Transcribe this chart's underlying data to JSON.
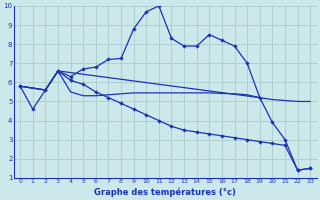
{
  "bg_color": "#cce8ea",
  "grid_color": "#aacccc",
  "line_color": "#1a32b8",
  "xlabel": "Graphe des températures (°c)",
  "xlim": [
    -0.5,
    23.5
  ],
  "ylim": [
    1,
    10
  ],
  "xticks": [
    0,
    1,
    2,
    3,
    4,
    5,
    6,
    7,
    8,
    9,
    10,
    11,
    12,
    13,
    14,
    15,
    16,
    17,
    18,
    19,
    20,
    21,
    22,
    23
  ],
  "yticks": [
    1,
    2,
    3,
    4,
    5,
    6,
    7,
    8,
    9,
    10
  ],
  "line1_x": [
    0,
    1,
    2,
    3,
    4,
    5,
    6,
    7,
    8,
    9,
    10,
    11,
    12,
    13,
    14,
    15,
    16,
    17,
    18,
    19,
    20,
    21,
    22,
    23
  ],
  "line1_y": [
    5.8,
    4.6,
    5.6,
    6.6,
    6.3,
    6.7,
    6.8,
    7.2,
    7.25,
    8.8,
    9.7,
    10.0,
    8.3,
    7.9,
    7.9,
    8.5,
    8.2,
    7.9,
    7.0,
    5.2,
    3.9,
    3.0,
    1.4,
    1.5
  ],
  "line2_x": [
    0,
    2,
    3,
    19,
    20,
    21,
    22,
    23
  ],
  "line2_y": [
    5.8,
    5.6,
    6.6,
    5.2,
    5.1,
    5.05,
    5.0,
    5.0
  ],
  "line3_x": [
    0,
    2,
    3,
    4,
    5,
    6,
    7,
    8,
    9,
    10,
    11,
    12,
    13,
    14,
    15,
    16,
    17,
    18,
    19,
    20,
    21,
    22,
    23
  ],
  "line3_y": [
    5.8,
    5.6,
    6.6,
    6.1,
    5.9,
    5.5,
    5.2,
    4.9,
    4.6,
    4.3,
    4.0,
    3.7,
    3.5,
    3.4,
    3.3,
    3.2,
    3.1,
    3.0,
    2.9,
    2.8,
    2.7,
    1.4,
    1.5
  ],
  "line4_x": [
    0,
    2,
    3,
    4,
    5,
    6,
    7,
    8,
    9,
    10,
    11,
    12,
    13,
    14,
    15,
    16,
    17,
    18,
    19
  ],
  "line4_y": [
    5.8,
    5.6,
    6.6,
    5.5,
    5.3,
    5.3,
    5.35,
    5.4,
    5.45,
    5.45,
    5.45,
    5.45,
    5.45,
    5.45,
    5.45,
    5.42,
    5.4,
    5.35,
    5.2
  ]
}
